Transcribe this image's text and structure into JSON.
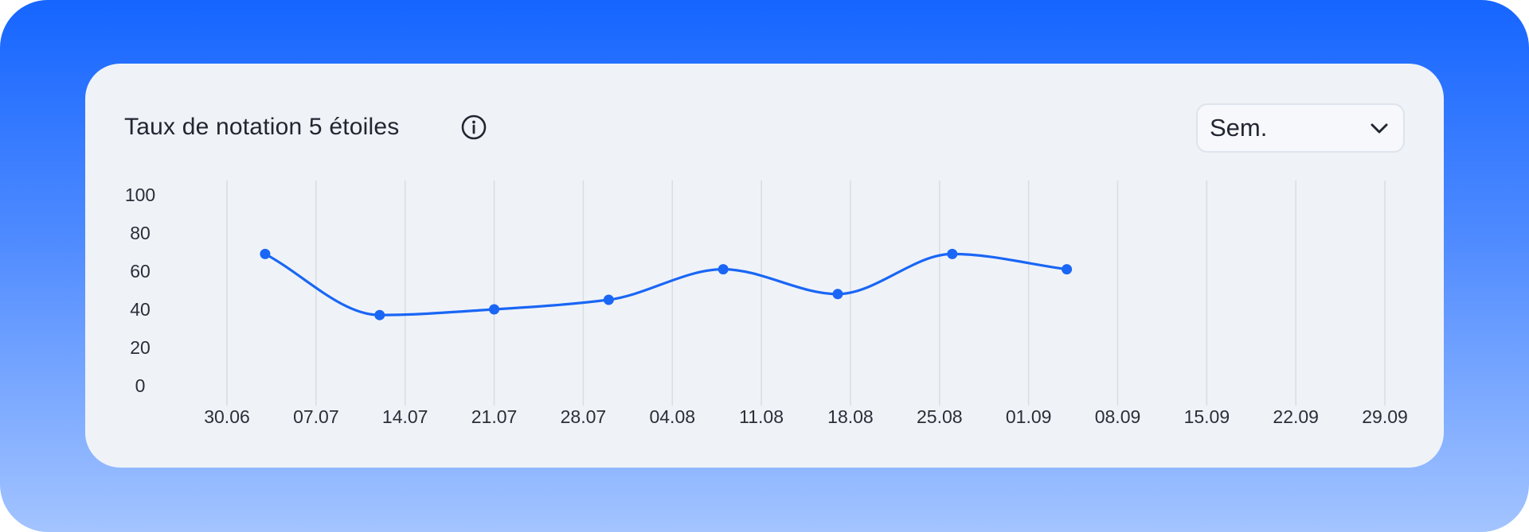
{
  "card": {
    "title": "Taux de notation 5 étoiles",
    "period_select": {
      "value": "Sem."
    }
  },
  "icons": {
    "info": "info-circle-icon",
    "dropdown": "chevron-down-icon"
  },
  "colors": {
    "accent": "#1a66f5",
    "grid": "#d9dde3",
    "text": "#222631"
  },
  "chart_data": {
    "type": "line",
    "title": "Taux de notation 5 étoiles",
    "xlabel": "",
    "ylabel": "",
    "x_ticks": [
      "30.06",
      "07.07",
      "14.07",
      "21.07",
      "28.07",
      "04.08",
      "11.08",
      "18.08",
      "25.08",
      "01.09",
      "08.09",
      "15.09",
      "22.09",
      "29.09"
    ],
    "y_ticks": [
      100,
      80,
      60,
      40,
      20,
      0
    ],
    "ylim": [
      0,
      100
    ],
    "xlim": [
      "2024-06-30",
      "2024-09-29"
    ],
    "grid": {
      "vertical": true,
      "horizontal": false
    },
    "series": [
      {
        "points": [
          {
            "x": "2024-07-03",
            "y": 69
          },
          {
            "x": "2024-07-12",
            "y": 37
          },
          {
            "x": "2024-07-21",
            "y": 40
          },
          {
            "x": "2024-07-30",
            "y": 45
          },
          {
            "x": "2024-08-08",
            "y": 61
          },
          {
            "x": "2024-08-17",
            "y": 48
          },
          {
            "x": "2024-08-26",
            "y": 69
          },
          {
            "x": "2024-09-04",
            "y": 61
          }
        ]
      }
    ]
  }
}
